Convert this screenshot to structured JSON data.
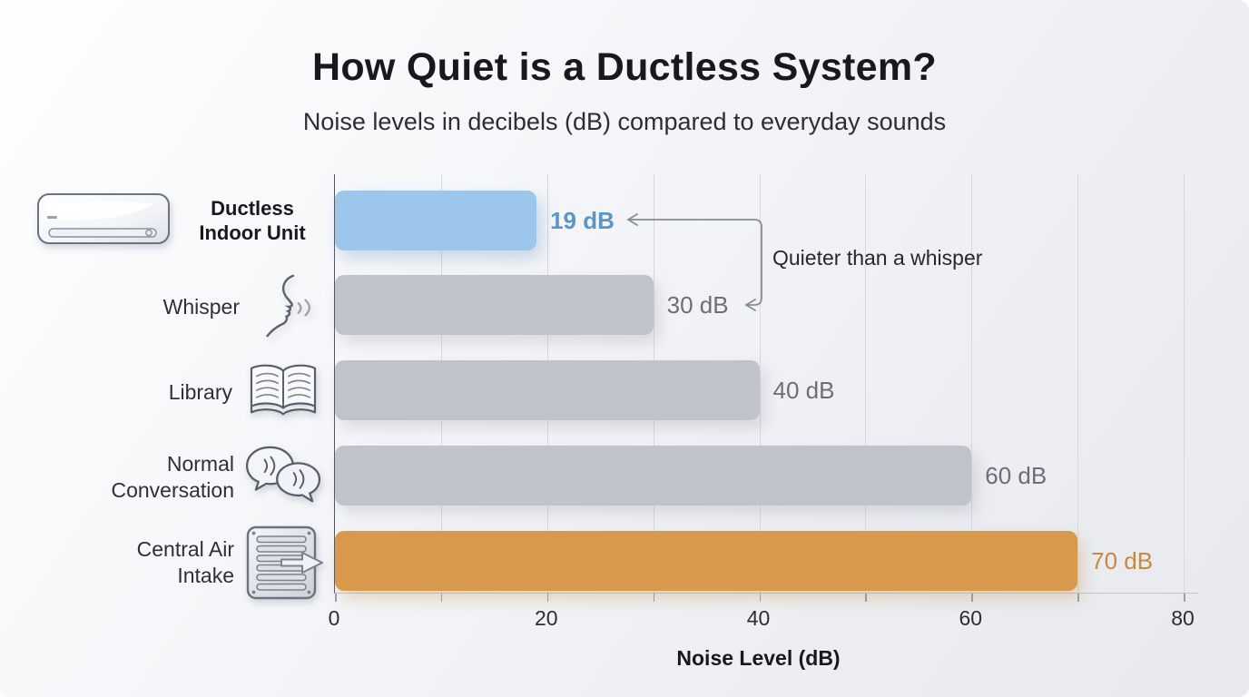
{
  "title": "How Quiet is a Ductless System?",
  "subtitle": "Noise levels in decibels (dB) compared to everyday sounds",
  "rows": [
    {
      "label_line1": "Ductless",
      "label_line2": "Indoor Unit",
      "icon": "ductless-indoor-unit-icon",
      "value": 19,
      "value_label": "19 dB"
    },
    {
      "label_line1": "Whisper",
      "label_line2": "",
      "icon": "whisper-face-icon",
      "value": 30,
      "value_label": "30 dB"
    },
    {
      "label_line1": "Library",
      "label_line2": "",
      "icon": "open-book-icon",
      "value": 40,
      "value_label": "40 dB"
    },
    {
      "label_line1": "Normal",
      "label_line2": "Conversation",
      "icon": "speech-bubbles-icon",
      "value": 60,
      "value_label": "60 dB"
    },
    {
      "label_line1": "Central Air",
      "label_line2": "Intake",
      "icon": "air-vent-icon",
      "value": 70,
      "value_label": "70 dB"
    }
  ],
  "annotation": {
    "text": "Quieter than a whisper"
  },
  "chart_data": {
    "type": "bar",
    "orientation": "horizontal",
    "title": "How Quiet is a Ductless System?",
    "subtitle": "Noise levels in decibels (dB) compared to everyday sounds",
    "categories": [
      "Ductless Indoor Unit",
      "Whisper",
      "Library",
      "Normal Conversation",
      "Central Air Intake"
    ],
    "values": [
      19,
      30,
      40,
      60,
      70
    ],
    "value_labels": [
      "19 dB",
      "30 dB",
      "40 dB",
      "60 dB",
      "70 dB"
    ],
    "xlabel": "Noise Level (dB)",
    "xlim": [
      0,
      80
    ],
    "x_ticks": [
      0,
      20,
      40,
      60,
      80
    ],
    "x_tick_labels": [
      "0",
      "20",
      "40",
      "60",
      "80"
    ],
    "grid": true,
    "grid_step": 10,
    "annotation": "Quieter than a whisper",
    "bar_colors": [
      "#9cc6ea",
      "#c0c3cc",
      "#c0c3cc",
      "#c0c3cc",
      "#d9994c"
    ],
    "value_label_colors": [
      "#5d95c4",
      "#6b7078",
      "#6b7078",
      "#6b7078",
      "#c8893e"
    ],
    "highlight_color": "#9cc6ea",
    "neutral_color": "#c0c3cc",
    "accent_color": "#d9994c",
    "legend": false
  }
}
